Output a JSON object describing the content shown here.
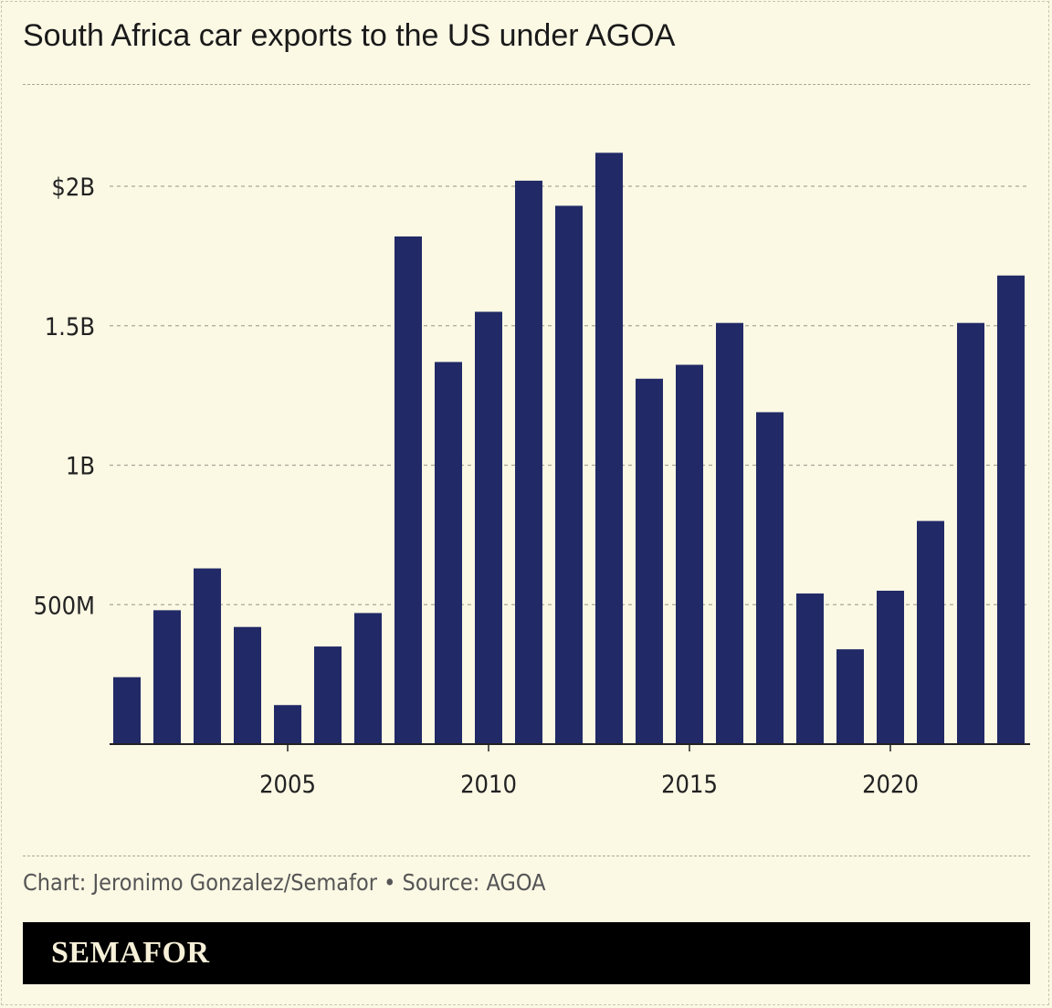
{
  "title": "South Africa car exports to the US under AGOA",
  "source": "Chart: Jeronimo Gonzalez/Semafor • Source: AGOA",
  "logo": "SEMAFOR",
  "chart_data": {
    "type": "bar",
    "title": "South Africa car exports to the US under AGOA",
    "xlabel": "",
    "ylabel": "",
    "categories": [
      2001,
      2002,
      2003,
      2004,
      2005,
      2006,
      2007,
      2008,
      2009,
      2010,
      2011,
      2012,
      2013,
      2014,
      2015,
      2016,
      2017,
      2018,
      2019,
      2020,
      2021,
      2022,
      2023
    ],
    "values": [
      0.24,
      0.48,
      0.63,
      0.42,
      0.14,
      0.35,
      0.47,
      1.82,
      1.37,
      1.55,
      2.02,
      1.93,
      2.12,
      1.31,
      1.36,
      1.51,
      1.19,
      0.54,
      0.34,
      0.55,
      0.8,
      1.51,
      1.68
    ],
    "unit": "billion USD",
    "ylim": [
      0,
      2.2
    ],
    "y_ticks": [
      {
        "value": 0.5,
        "label": "500M"
      },
      {
        "value": 1,
        "label": "1B"
      },
      {
        "value": 1.5,
        "label": "1.5B"
      },
      {
        "value": 2,
        "label": "$2B"
      }
    ],
    "x_ticks": [
      {
        "value": 2005,
        "label": "2005"
      },
      {
        "value": 2010,
        "label": "2010"
      },
      {
        "value": 2015,
        "label": "2015"
      },
      {
        "value": 2020,
        "label": "2020"
      }
    ],
    "grid": true,
    "bar_color": "#212a66"
  }
}
